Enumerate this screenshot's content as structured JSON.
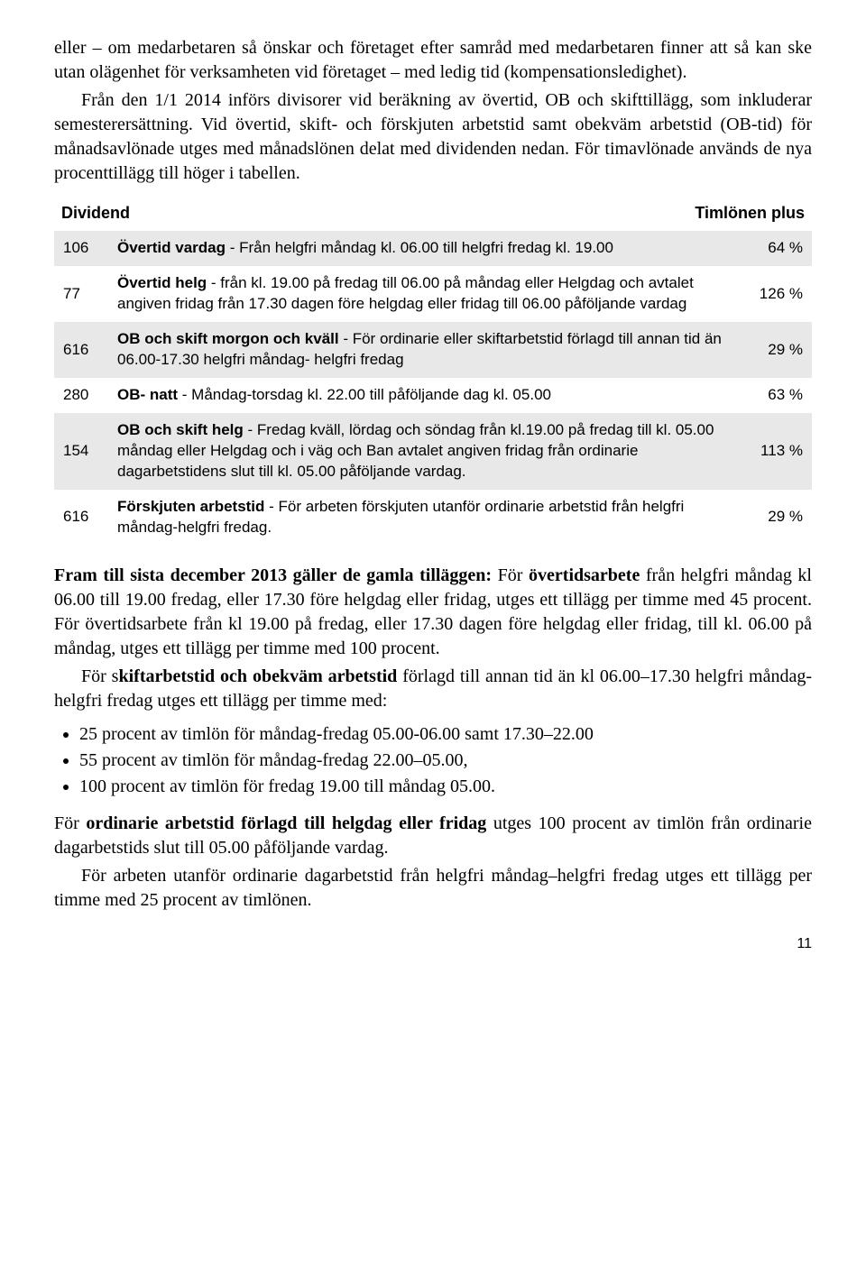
{
  "paragraphs": {
    "p1": "eller – om medarbetaren så önskar och företaget efter samråd med medarbetaren finner att så kan ske utan olägenhet för verksamheten vid företaget – med ledig tid (kompensationsledighet).",
    "p2": "Från den 1/1 2014 införs divisorer vid beräkning av övertid, OB och skifttillägg, som inkluderar semesterersättning. Vid övertid, skift- och förskjuten arbetstid samt obekväm arbetstid (OB-tid) för månadsavlönade utges med månadslönen delat med dividenden nedan. För timavlönade används de nya procenttillägg till höger i tabellen."
  },
  "table_header": {
    "left": "Dividend",
    "right": "Timlönen plus"
  },
  "rows": [
    {
      "dividend": "106",
      "bold": "Övertid vardag",
      "rest": " - Från helgfri måndag kl. 06.00 till helgfri fredag kl. 19.00",
      "pct": "64 %",
      "shaded": true
    },
    {
      "dividend": "77",
      "bold": "Övertid helg",
      "rest": " - från kl. 19.00 på fredag till 06.00 på måndag eller Helgdag och avtalet angiven fridag från 17.30 dagen före helgdag eller fridag till 06.00 påföljande vardag",
      "pct": "126 %",
      "shaded": false
    },
    {
      "dividend": "616",
      "bold": "OB och skift morgon och kväll",
      "rest": " - För ordinarie eller skiftarbetstid förlagd till annan tid än 06.00-17.30 helgfri måndag- helgfri fredag",
      "pct": "29 %",
      "shaded": true
    },
    {
      "dividend": "280",
      "bold": "OB- natt",
      "rest": " - Måndag-torsdag kl. 22.00 till påföljande dag kl. 05.00",
      "pct": "63 %",
      "shaded": false
    },
    {
      "dividend": "154",
      "bold": "OB och skift helg",
      "rest": " - Fredag kväll, lördag och söndag från kl.19.00 på fredag till kl. 05.00 måndag eller Helgdag och i väg och Ban avtalet angiven fridag från ordinarie dagarbetstidens slut till kl. 05.00 påföljande vardag.",
      "pct": "113 %",
      "shaded": true
    },
    {
      "dividend": "616",
      "bold": "Förskjuten arbetstid",
      "rest": " - För arbeten förskjuten utanför ordinarie arbetstid från helgfri måndag-helgfri fredag.",
      "pct": "29 %",
      "shaded": false
    }
  ],
  "after": {
    "p3_bold": "Fram till sista december 2013 gäller de gamla tilläggen:",
    "p3_rest1": " För ",
    "p3_bold2": "övertidsarbete",
    "p3_rest2": " från helgfri måndag kl 06.00 till 19.00 fredag, eller 17.30 före helgdag eller fridag, utges ett tillägg per timme med 45 procent. För övertidsarbete från kl 19.00 på fredag, eller 17.30 dagen före helgdag eller fridag, till kl. 06.00 på måndag, utges ett tillägg per timme med 100 procent.",
    "p4_pre": "För s",
    "p4_bold": "kiftarbetstid och obekväm arbetstid",
    "p4_rest": " förlagd till annan tid än kl 06.00–17.30 helgfri måndag-helgfri fredag utges ett tillägg per timme med:",
    "bullets": [
      "25 procent av timlön för måndag-fredag 05.00-06.00 samt 17.30–22.00",
      "55 procent av timlön för måndag-fredag 22.00–05.00,",
      "100 procent av timlön för fredag 19.00 till måndag 05.00."
    ],
    "p5_pre": "För ",
    "p5_bold": "ordinarie arbetstid förlagd till helgdag eller fridag",
    "p5_rest": " utges 100 procent av timlön från ordinarie dagarbetstids slut till 05.00 påföljande vardag.",
    "p6": "För arbeten utanför ordinarie dagarbetstid från helgfri måndag–helgfri fredag utges ett tillägg per timme med 25 procent av timlönen."
  },
  "page_number": "11"
}
